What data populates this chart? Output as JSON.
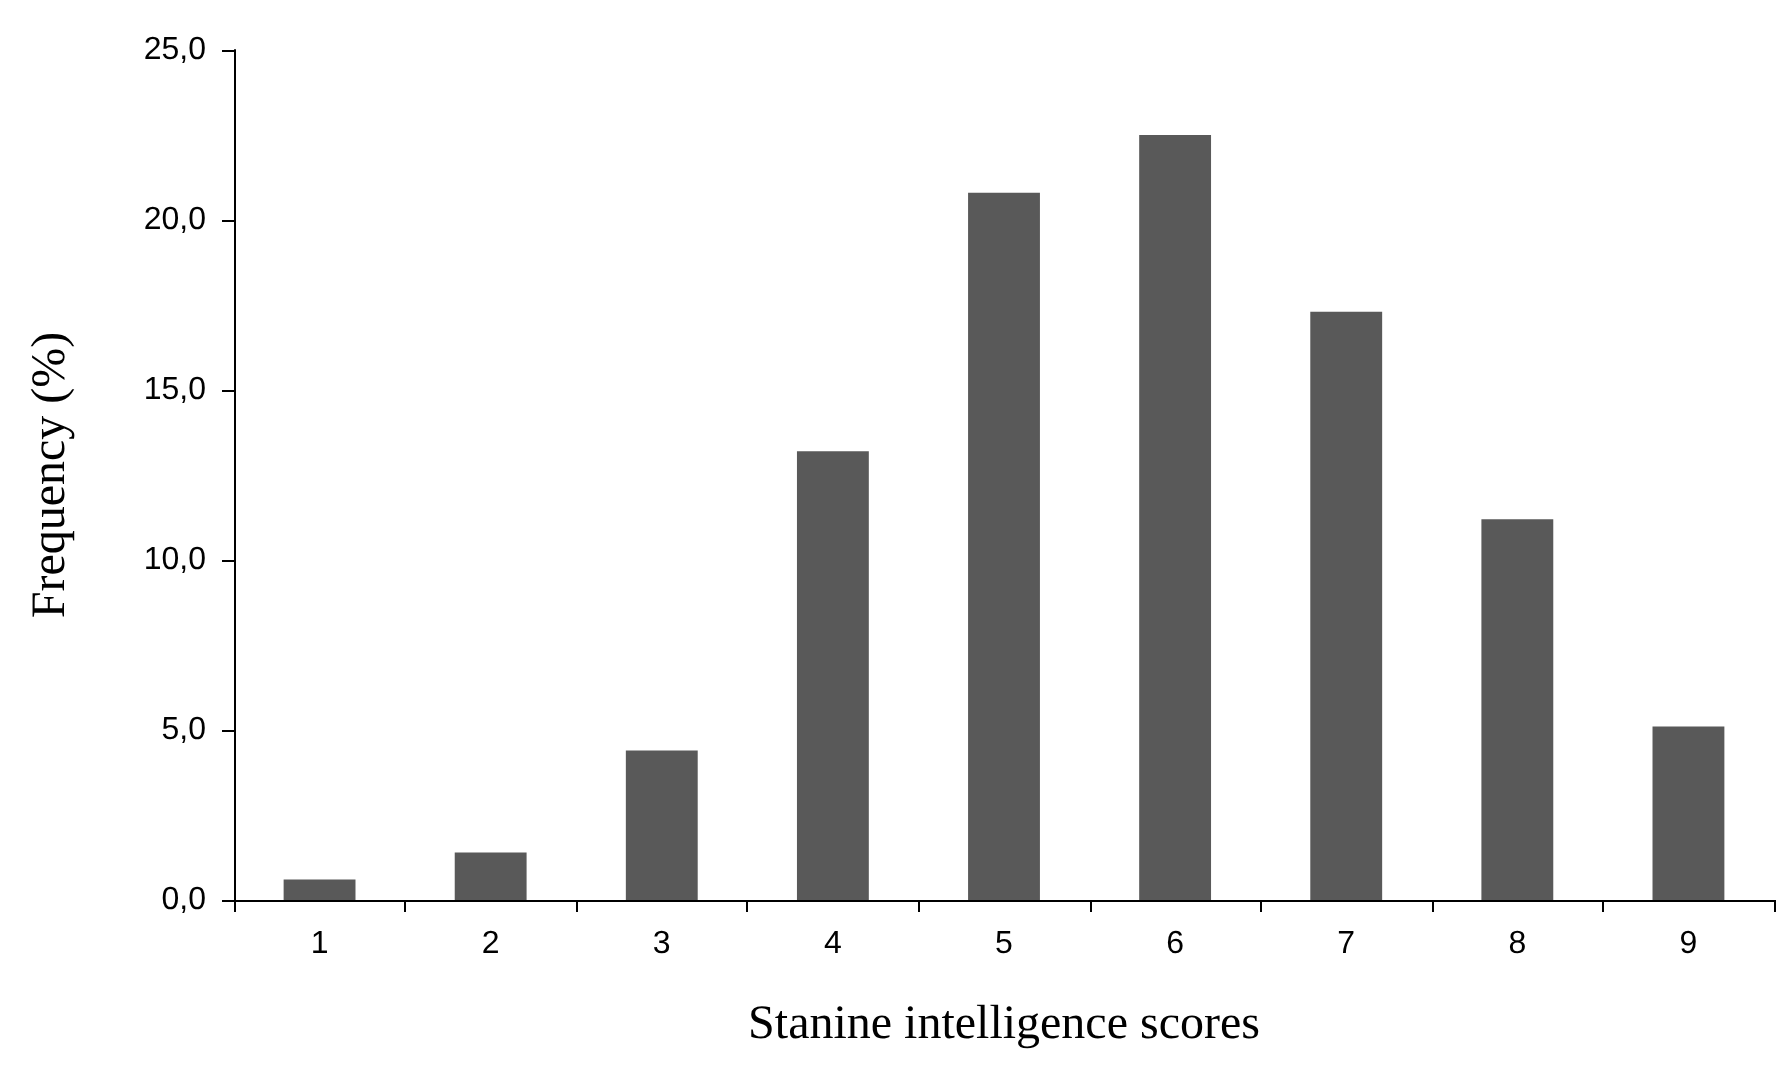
{
  "chart_data": {
    "type": "bar",
    "xlabel": "Stanine intelligence scores",
    "ylabel": "Frequency (%)",
    "categories": [
      "1",
      "2",
      "3",
      "4",
      "5",
      "6",
      "7",
      "8",
      "9"
    ],
    "values": [
      0.6,
      1.4,
      4.4,
      13.2,
      20.8,
      22.5,
      17.3,
      11.2,
      5.1
    ],
    "color": "#595959",
    "ylim": [
      0,
      25
    ],
    "yticks": [
      {
        "value": 0,
        "label": "0,0"
      },
      {
        "value": 5,
        "label": "5,0"
      },
      {
        "value": 10,
        "label": "10,0"
      },
      {
        "value": 15,
        "label": "15,0"
      },
      {
        "value": 20,
        "label": "20,0"
      },
      {
        "value": 25,
        "label": "25,0"
      }
    ]
  }
}
